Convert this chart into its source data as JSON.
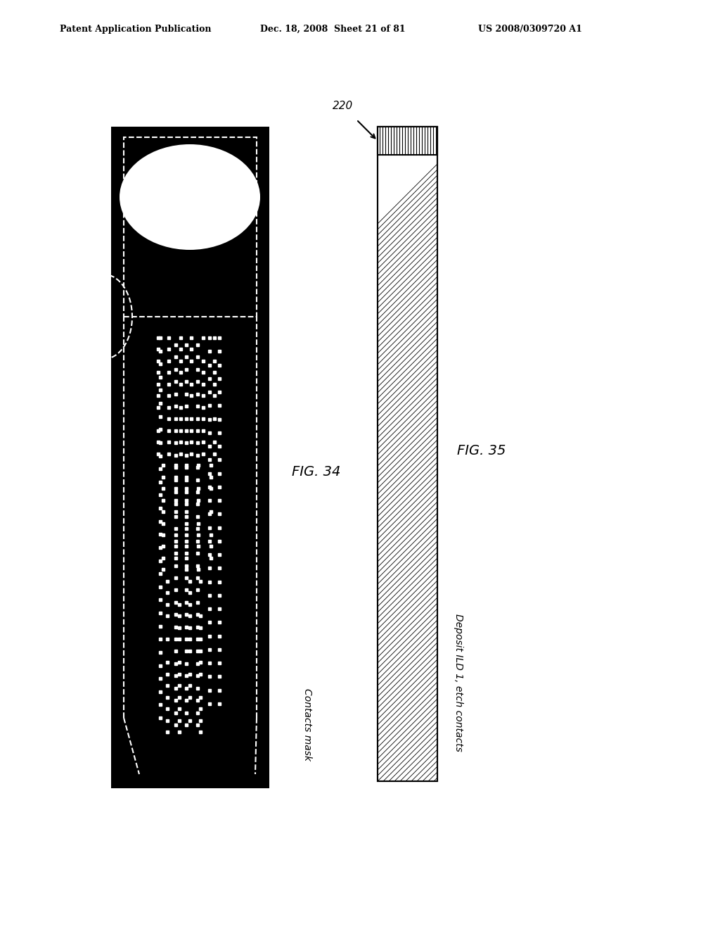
{
  "bg_color": "#ffffff",
  "header_left": "Patent Application Publication",
  "header_mid": "Dec. 18, 2008  Sheet 21 of 81",
  "header_right": "US 2008/0309720 A1",
  "fig34_label": "FIG. 34",
  "fig35_label": "FIG. 35",
  "label34": "Contacts mask",
  "label35": "Deposit ILD 1, etch contacts",
  "label220": "220"
}
